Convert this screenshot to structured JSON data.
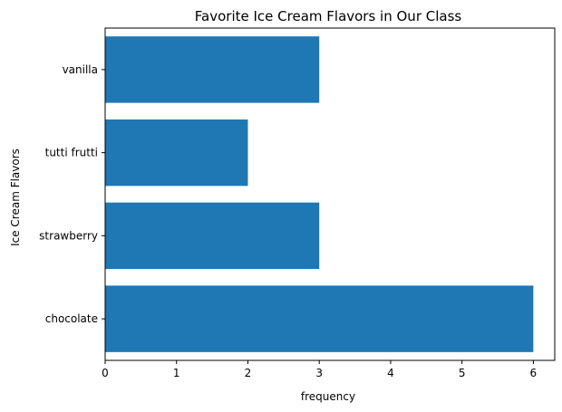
{
  "chart_data": {
    "type": "bar",
    "orientation": "horizontal",
    "title": "Favorite Ice Cream Flavors in Our Class",
    "xlabel": "frequency",
    "ylabel": "Ice Cream Flavors",
    "categories": [
      "chocolate",
      "strawberry",
      "tutti frutti",
      "vanilla"
    ],
    "values": [
      6,
      3,
      2,
      3
    ],
    "xlim": [
      0,
      6.3
    ],
    "xticks": [
      "0",
      "1",
      "2",
      "3",
      "4",
      "5",
      "6"
    ],
    "bar_color": "#1f77b4",
    "grid": false,
    "legend": "none"
  }
}
